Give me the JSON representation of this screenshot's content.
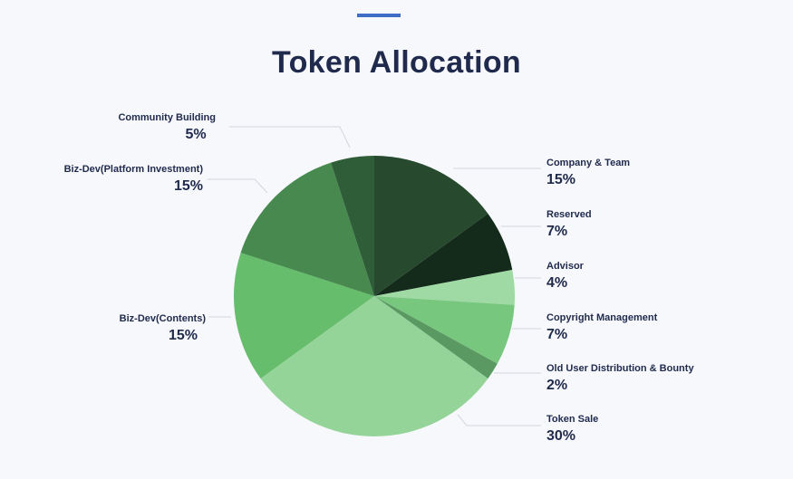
{
  "colors": {
    "accent": "#3f6cc4",
    "title": "#1f2a4d",
    "leader_line": "#d3d6dd"
  },
  "chart_data": {
    "type": "pie",
    "title": "Token Allocation",
    "slices": [
      {
        "label": "Company & Team",
        "percent_label": "15%",
        "value": 15,
        "color": "#274a2e"
      },
      {
        "label": "Reserved",
        "percent_label": "7%",
        "value": 7,
        "color": "#142b1b"
      },
      {
        "label": "Advisor",
        "percent_label": "4%",
        "value": 4,
        "color": "#9fd9a4"
      },
      {
        "label": "Copyright Management",
        "percent_label": "7%",
        "value": 7,
        "color": "#77c77e"
      },
      {
        "label": "Old User Distribution & Bounty",
        "percent_label": "2%",
        "value": 2,
        "color": "#5a9a62"
      },
      {
        "label": "Token Sale",
        "percent_label": "30%",
        "value": 30,
        "color": "#94d499"
      },
      {
        "label": "Biz-Dev(Contents)",
        "percent_label": "15%",
        "value": 15,
        "color": "#66bd6c"
      },
      {
        "label": "Biz-Dev(Platform Investment)",
        "percent_label": "15%",
        "value": 15,
        "color": "#47894f"
      },
      {
        "label": "Community Building",
        "percent_label": "5%",
        "value": 5,
        "color": "#2f5d38"
      }
    ]
  }
}
